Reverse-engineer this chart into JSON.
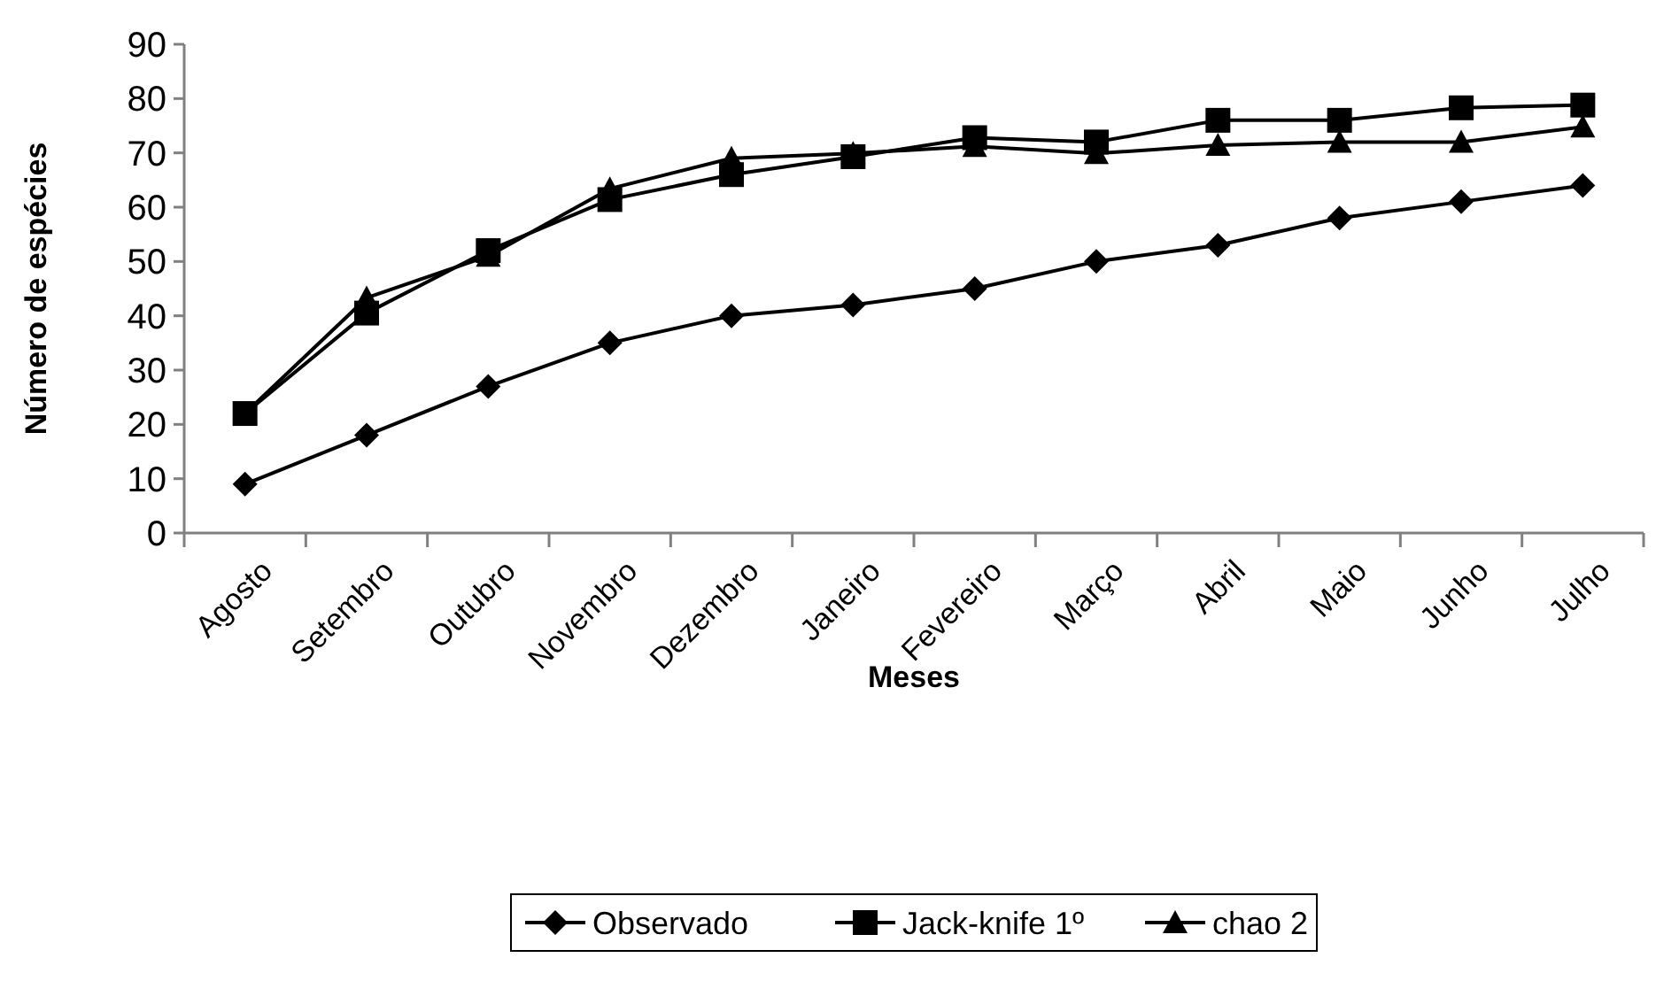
{
  "chart_data": {
    "type": "line",
    "xlabel": "Meses",
    "ylabel": "Número de espécies",
    "categories": [
      "Agosto",
      "Setembro",
      "Outubro",
      "Novembro",
      "Dezembro",
      "Janeiro",
      "Fevereiro",
      "Março",
      "Abril",
      "Maio",
      "Junho",
      "Julho"
    ],
    "series": [
      {
        "name": "Observado",
        "color": "#000000",
        "marker": "diamond",
        "values": [
          9,
          18,
          27,
          35,
          40,
          42,
          45,
          50,
          53,
          58,
          61,
          64
        ]
      },
      {
        "name": "Jack-knife 1º",
        "color": "#000000",
        "marker": "square",
        "values": [
          22,
          40.5,
          52,
          61.4,
          66,
          69.3,
          72.8,
          72,
          76,
          76,
          78.3,
          78.8
        ]
      },
      {
        "name": "chao 2",
        "color": "#000000",
        "marker": "triangle",
        "values": [
          22,
          43.3,
          51,
          63.4,
          69,
          69.9,
          71.2,
          69.9,
          71.4,
          72,
          72,
          74.8
        ]
      }
    ],
    "ylim": [
      0,
      90
    ],
    "yticks": [
      0,
      10,
      20,
      30,
      40,
      50,
      60,
      70,
      80,
      90
    ],
    "grid": false,
    "legend": "bottom",
    "line_style": "solid"
  }
}
